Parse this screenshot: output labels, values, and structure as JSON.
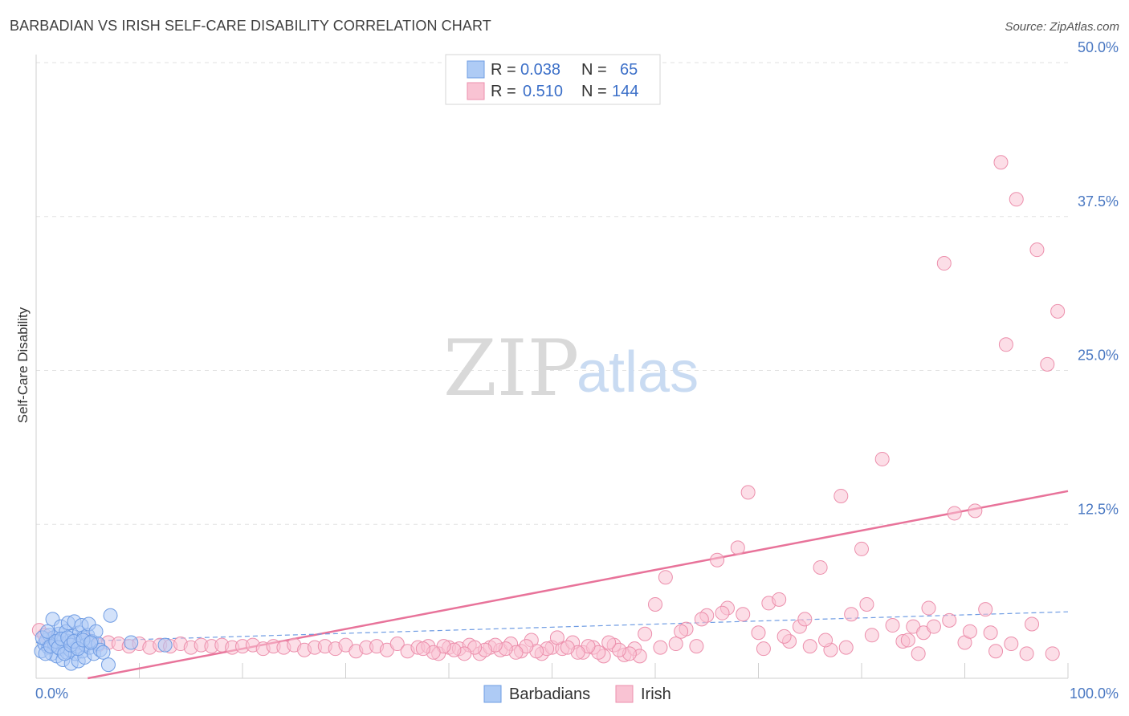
{
  "header": {
    "title": "BARBADIAN VS IRISH SELF-CARE DISABILITY CORRELATION CHART",
    "source": "Source: ZipAtlas.com"
  },
  "watermark": {
    "zip": "ZIP",
    "atlas": "atlas"
  },
  "legend": {
    "rows": [
      {
        "r_label": "R = ",
        "r_value": "0.038",
        "n_label": "N = ",
        "n_value": "65",
        "color": "#aecbf5",
        "stroke": "#6f9ce3"
      },
      {
        "r_label": "R = ",
        "r_value": "0.510",
        "n_label": "N = ",
        "n_value": "144",
        "color": "#f9c3d3",
        "stroke": "#ec8fac"
      }
    ]
  },
  "bottom_legend": {
    "items": [
      {
        "label": "Barbadians"
      },
      {
        "label": "Irish"
      }
    ]
  },
  "chart_data": {
    "type": "scatter",
    "title": "BARBADIAN VS IRISH SELF-CARE DISABILITY CORRELATION CHART",
    "xlabel": "",
    "ylabel": "Self-Care Disability",
    "xlim": [
      0,
      100
    ],
    "ylim": [
      0,
      50
    ],
    "y_ticks": [
      {
        "value": 12.5,
        "label": "12.5%"
      },
      {
        "value": 25,
        "label": "25.0%"
      },
      {
        "value": 37.5,
        "label": "37.5%"
      },
      {
        "value": 50,
        "label": "50.0%"
      }
    ],
    "x_tick_labels": [
      {
        "value": 0,
        "label": "0.0%"
      },
      {
        "value": 100,
        "label": "100.0%"
      }
    ],
    "x_minor_ticks": [
      10,
      20,
      30,
      40,
      50,
      60,
      70,
      80,
      90
    ],
    "grid": true,
    "series": [
      {
        "name": "Barbadians",
        "color": "#aecbf5",
        "stroke": "#6f9ce3",
        "points": [
          [
            0.5,
            2.2
          ],
          [
            0.8,
            2.8
          ],
          [
            1.0,
            3.1
          ],
          [
            1.2,
            2.5
          ],
          [
            1.3,
            3.5
          ],
          [
            1.5,
            2.0
          ],
          [
            1.6,
            4.8
          ],
          [
            1.7,
            3.3
          ],
          [
            1.8,
            2.7
          ],
          [
            2.0,
            1.8
          ],
          [
            2.1,
            3.0
          ],
          [
            2.2,
            3.6
          ],
          [
            2.3,
            2.4
          ],
          [
            2.4,
            4.2
          ],
          [
            2.5,
            2.9
          ],
          [
            2.6,
            1.5
          ],
          [
            2.7,
            3.2
          ],
          [
            2.8,
            2.6
          ],
          [
            2.9,
            3.8
          ],
          [
            3.0,
            2.1
          ],
          [
            3.1,
            4.5
          ],
          [
            3.2,
            3.0
          ],
          [
            3.3,
            2.3
          ],
          [
            3.4,
            1.2
          ],
          [
            3.5,
            3.4
          ],
          [
            3.6,
            2.8
          ],
          [
            3.7,
            4.6
          ],
          [
            3.8,
            2.0
          ],
          [
            3.9,
            3.1
          ],
          [
            4.0,
            2.6
          ],
          [
            4.1,
            1.4
          ],
          [
            4.2,
            3.7
          ],
          [
            4.3,
            2.9
          ],
          [
            4.4,
            4.3
          ],
          [
            4.5,
            2.2
          ],
          [
            4.6,
            3.3
          ],
          [
            4.7,
            1.7
          ],
          [
            4.8,
            2.7
          ],
          [
            5.0,
            3.5
          ],
          [
            5.1,
            4.4
          ],
          [
            5.2,
            2.5
          ],
          [
            5.4,
            3.0
          ],
          [
            5.6,
            2.0
          ],
          [
            5.8,
            3.8
          ],
          [
            6.0,
            2.8
          ],
          [
            6.2,
            2.3
          ],
          [
            0.6,
            3.3
          ],
          [
            0.9,
            2.0
          ],
          [
            1.1,
            3.8
          ],
          [
            1.4,
            2.6
          ],
          [
            1.9,
            3.0
          ],
          [
            2.15,
            2.5
          ],
          [
            2.45,
            3.2
          ],
          [
            2.75,
            2.0
          ],
          [
            3.05,
            3.3
          ],
          [
            3.35,
            2.7
          ],
          [
            3.65,
            3.0
          ],
          [
            4.05,
            2.4
          ],
          [
            4.55,
            3.1
          ],
          [
            5.3,
            2.9
          ],
          [
            6.5,
            2.1
          ],
          [
            7.0,
            1.1
          ],
          [
            7.2,
            5.1
          ],
          [
            9.2,
            2.9
          ],
          [
            12.5,
            2.7
          ]
        ]
      },
      {
        "name": "Irish",
        "color": "#f9c3d3",
        "stroke": "#ec8fac",
        "points": [
          [
            0.3,
            3.9
          ],
          [
            0.8,
            3.5
          ],
          [
            1.2,
            3.2
          ],
          [
            2.0,
            3.0
          ],
          [
            3.0,
            2.9
          ],
          [
            4.0,
            2.8
          ],
          [
            5.0,
            3.1
          ],
          [
            6.0,
            2.7
          ],
          [
            7.0,
            2.9
          ],
          [
            8.0,
            2.8
          ],
          [
            9.0,
            2.6
          ],
          [
            10.0,
            2.8
          ],
          [
            11.0,
            2.5
          ],
          [
            12.0,
            2.7
          ],
          [
            13.0,
            2.6
          ],
          [
            14.0,
            2.8
          ],
          [
            15.0,
            2.5
          ],
          [
            16.0,
            2.7
          ],
          [
            17.0,
            2.6
          ],
          [
            18.0,
            2.7
          ],
          [
            19.0,
            2.5
          ],
          [
            20.0,
            2.6
          ],
          [
            21.0,
            2.7
          ],
          [
            22.0,
            2.4
          ],
          [
            23.0,
            2.6
          ],
          [
            24.0,
            2.5
          ],
          [
            25.0,
            2.7
          ],
          [
            26.0,
            2.3
          ],
          [
            27.0,
            2.5
          ],
          [
            28.0,
            2.6
          ],
          [
            29.0,
            2.4
          ],
          [
            30.0,
            2.7
          ],
          [
            31.0,
            2.2
          ],
          [
            32.0,
            2.5
          ],
          [
            33.0,
            2.6
          ],
          [
            34.0,
            2.3
          ],
          [
            35.0,
            2.8
          ],
          [
            36.0,
            2.2
          ],
          [
            37.0,
            2.5
          ],
          [
            38.0,
            2.6
          ],
          [
            39.0,
            2.0
          ],
          [
            40.0,
            2.5
          ],
          [
            41.0,
            2.4
          ],
          [
            42.0,
            2.7
          ],
          [
            43.0,
            2.0
          ],
          [
            44.0,
            2.5
          ],
          [
            45.0,
            2.3
          ],
          [
            46.0,
            2.8
          ],
          [
            47.0,
            2.2
          ],
          [
            48.0,
            3.1
          ],
          [
            49.0,
            2.0
          ],
          [
            50.0,
            2.5
          ],
          [
            51.0,
            2.4
          ],
          [
            52.0,
            2.9
          ],
          [
            53.0,
            2.1
          ],
          [
            54.0,
            2.5
          ],
          [
            55.0,
            1.8
          ],
          [
            56.0,
            2.7
          ],
          [
            57.0,
            1.9
          ],
          [
            58.0,
            2.4
          ],
          [
            59.0,
            3.6
          ],
          [
            60.0,
            6.0
          ],
          [
            61.0,
            8.2
          ],
          [
            62.0,
            2.8
          ],
          [
            63.0,
            4.0
          ],
          [
            64.0,
            2.6
          ],
          [
            65.0,
            5.1
          ],
          [
            66.0,
            9.6
          ],
          [
            67.0,
            5.7
          ],
          [
            68.0,
            10.6
          ],
          [
            68.5,
            5.2
          ],
          [
            69.0,
            15.1
          ],
          [
            70.0,
            3.7
          ],
          [
            71.0,
            6.1
          ],
          [
            72.0,
            6.4
          ],
          [
            73.0,
            3.0
          ],
          [
            74.0,
            4.2
          ],
          [
            75.0,
            2.6
          ],
          [
            76.0,
            9.0
          ],
          [
            77.0,
            2.3
          ],
          [
            78.0,
            14.8
          ],
          [
            79.0,
            5.2
          ],
          [
            80.0,
            10.5
          ],
          [
            81.0,
            3.5
          ],
          [
            82.0,
            17.8
          ],
          [
            83.0,
            4.3
          ],
          [
            84.0,
            3.0
          ],
          [
            85.0,
            4.2
          ],
          [
            85.5,
            2.0
          ],
          [
            86.0,
            3.7
          ],
          [
            87.0,
            4.2
          ],
          [
            88.0,
            33.7
          ],
          [
            89.0,
            13.4
          ],
          [
            90.0,
            2.9
          ],
          [
            91.0,
            13.6
          ],
          [
            92.0,
            5.6
          ],
          [
            93.0,
            2.2
          ],
          [
            94.0,
            27.1
          ],
          [
            95.0,
            38.9
          ],
          [
            96.0,
            2.0
          ],
          [
            97.0,
            34.8
          ],
          [
            98.0,
            25.5
          ],
          [
            99.0,
            29.8
          ],
          [
            60.5,
            2.5
          ],
          [
            62.5,
            3.8
          ],
          [
            64.5,
            4.8
          ],
          [
            66.5,
            5.3
          ],
          [
            70.5,
            2.4
          ],
          [
            72.5,
            3.4
          ],
          [
            74.5,
            4.8
          ],
          [
            76.5,
            3.1
          ],
          [
            78.5,
            2.5
          ],
          [
            80.5,
            6.0
          ],
          [
            84.5,
            3.1
          ],
          [
            86.5,
            5.7
          ],
          [
            88.5,
            4.7
          ],
          [
            90.5,
            3.8
          ],
          [
            92.5,
            3.7
          ],
          [
            96.5,
            4.4
          ],
          [
            98.5,
            2.0
          ],
          [
            93.5,
            41.9
          ],
          [
            94.5,
            2.8
          ],
          [
            58.5,
            1.8
          ],
          [
            57.5,
            2.0
          ],
          [
            56.5,
            2.3
          ],
          [
            55.5,
            2.9
          ],
          [
            54.5,
            2.1
          ],
          [
            53.5,
            2.6
          ],
          [
            52.5,
            2.1
          ],
          [
            51.5,
            2.5
          ],
          [
            50.5,
            3.3
          ],
          [
            49.5,
            2.4
          ],
          [
            48.5,
            2.2
          ],
          [
            47.5,
            2.6
          ],
          [
            46.5,
            2.1
          ],
          [
            45.5,
            2.4
          ],
          [
            44.5,
            2.7
          ],
          [
            43.5,
            2.3
          ],
          [
            42.5,
            2.5
          ],
          [
            41.5,
            2.0
          ],
          [
            40.5,
            2.3
          ],
          [
            39.5,
            2.6
          ],
          [
            38.5,
            2.1
          ],
          [
            37.5,
            2.4
          ]
        ]
      }
    ],
    "trendlines": [
      {
        "series": "Irish",
        "style": "solid",
        "color": "#e8739a",
        "from": [
          0,
          -0.8
        ],
        "to": [
          100,
          15.2
        ]
      },
      {
        "series": "Barbadians",
        "style": "dashed",
        "color": "#6f9ce3",
        "from": [
          0,
          2.9
        ],
        "to": [
          100,
          5.4
        ]
      }
    ]
  }
}
